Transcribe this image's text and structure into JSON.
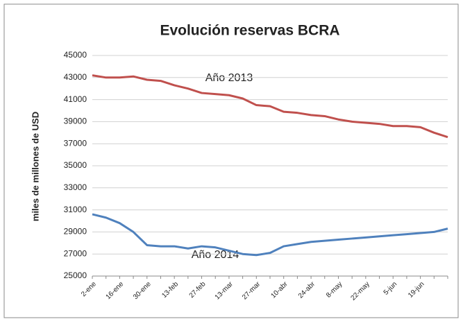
{
  "chart_data": {
    "type": "line",
    "title": "Evolución reservas BCRA",
    "y_axis_label": "miles de millones de USD",
    "annotations": [
      "Año 2013",
      "Año 2014"
    ],
    "categories": [
      "2-ene",
      null,
      "16-ene",
      null,
      "30-ene",
      null,
      "13-feb",
      null,
      "27-feb",
      null,
      "13-mar",
      null,
      "27-mar",
      null,
      "10-abr",
      null,
      "24-abr",
      null,
      "8-may",
      null,
      "22-may",
      null,
      "5-jun",
      null,
      "19-jun",
      null,
      null
    ],
    "series": [
      {
        "color": "#c0504d",
        "values": [
          43200,
          43000,
          43000,
          43100,
          42800,
          42700,
          42300,
          42000,
          41600,
          41500,
          41400,
          41100,
          40500,
          40400,
          39900,
          39800,
          39600,
          39500,
          39200,
          39000,
          38900,
          38800,
          38600,
          38600,
          38500,
          38000,
          37600
        ]
      },
      {
        "color": "#4f81bd",
        "values": [
          30600,
          30300,
          29800,
          29000,
          27800,
          27700,
          27700,
          27500,
          27700,
          27600,
          27300,
          27000,
          26900,
          27100,
          27700,
          27900,
          28100,
          28200,
          28300,
          28400,
          28500,
          28600,
          28700,
          28800,
          28900,
          29000,
          29300
        ]
      }
    ],
    "ylim": [
      25000,
      45000
    ],
    "yticks": [
      25000,
      27000,
      29000,
      31000,
      33000,
      35000,
      37000,
      39000,
      41000,
      43000,
      45000
    ],
    "grid": true
  }
}
